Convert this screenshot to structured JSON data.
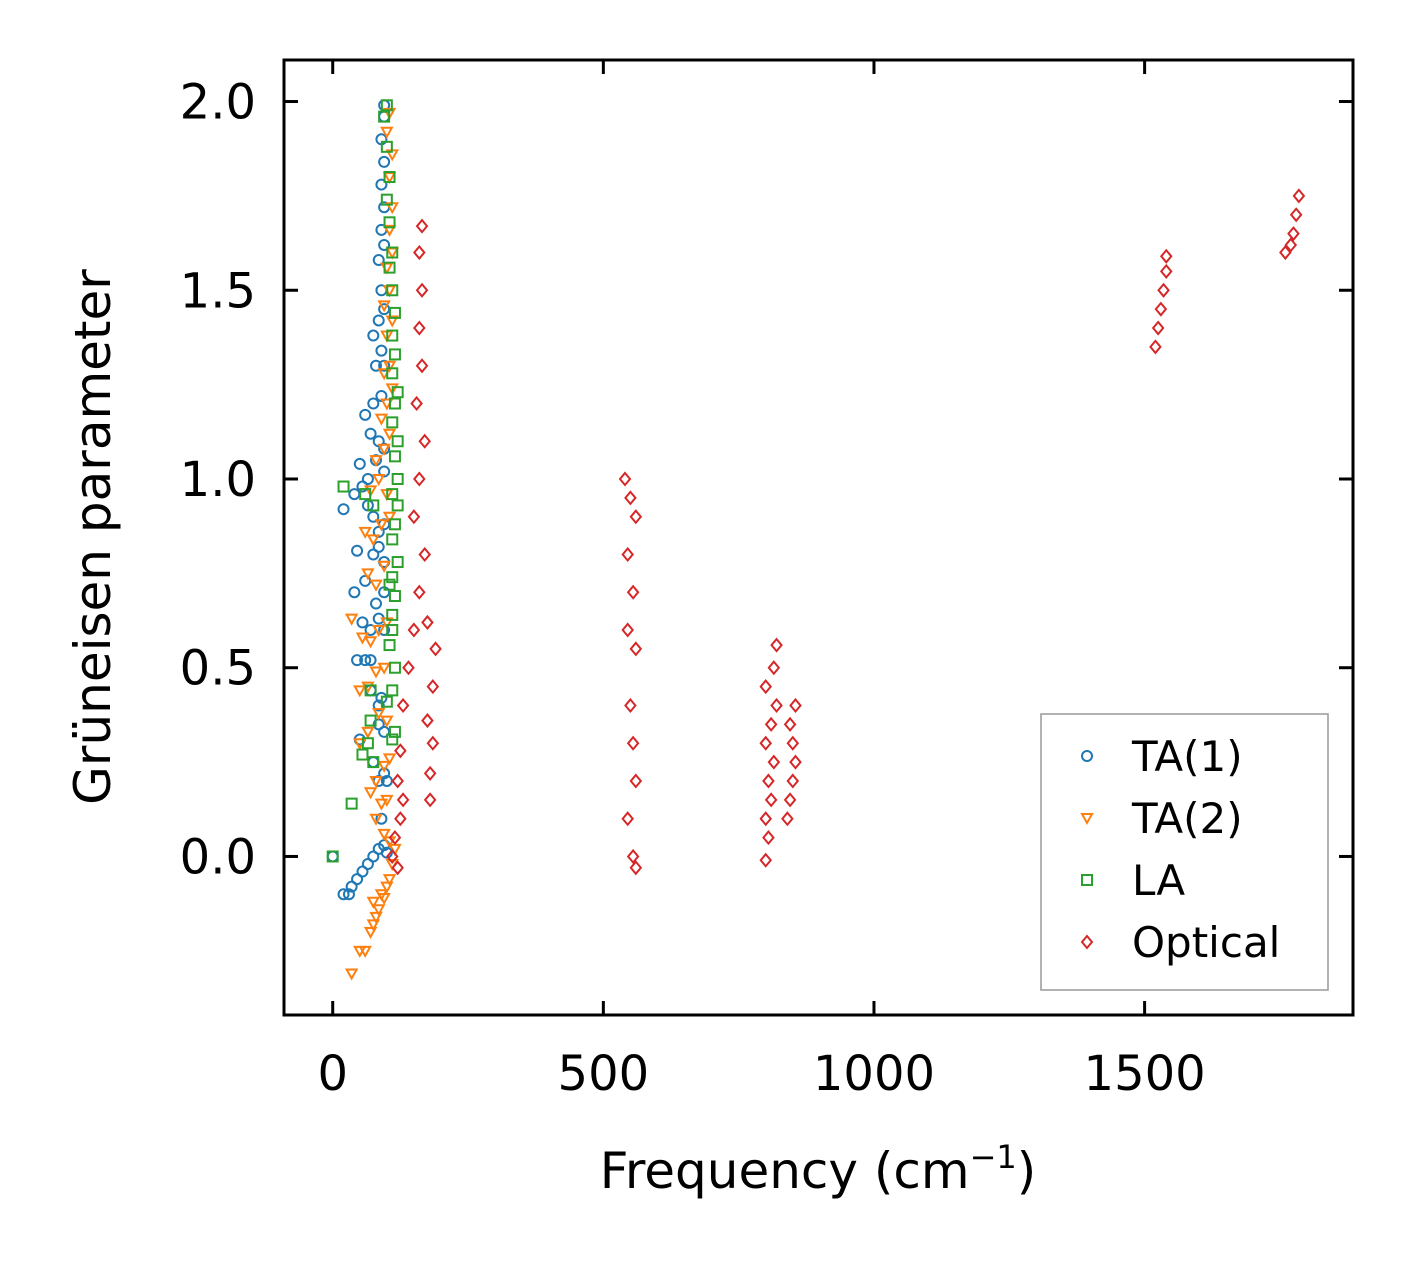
{
  "chart_data": {
    "type": "scatter",
    "title": "",
    "xlabel": "Frequency (cm",
    "xlabel_sup": "−1",
    "xlabel_close": ")",
    "ylabel": "Grüneisen parameter",
    "xlim": [
      -90,
      1885
    ],
    "ylim": [
      -0.42,
      2.11
    ],
    "x_ticks": [
      0,
      500,
      1000,
      1500
    ],
    "x_tick_labels": [
      "0",
      "500",
      "1000",
      "1500"
    ],
    "y_ticks": [
      0.0,
      0.5,
      1.0,
      1.5,
      2.0
    ],
    "y_tick_labels": [
      "0.0",
      "0.5",
      "1.0",
      "1.5",
      "2.0"
    ],
    "grid": false,
    "legend_position": "bottom-right",
    "series": [
      {
        "name": "TA(1)",
        "color": "#1f77b4",
        "marker": "circle",
        "points": [
          [
            0,
            0.0
          ],
          [
            20,
            -0.1
          ],
          [
            30,
            -0.1
          ],
          [
            35,
            -0.08
          ],
          [
            45,
            -0.06
          ],
          [
            55,
            -0.04
          ],
          [
            65,
            -0.02
          ],
          [
            75,
            0.0
          ],
          [
            85,
            0.02
          ],
          [
            95,
            0.03
          ],
          [
            100,
            0.01
          ],
          [
            90,
            0.1
          ],
          [
            85,
            0.2
          ],
          [
            95,
            0.22
          ],
          [
            100,
            0.2
          ],
          [
            75,
            0.25
          ],
          [
            85,
            0.35
          ],
          [
            95,
            0.33
          ],
          [
            70,
            0.44
          ],
          [
            85,
            0.4
          ],
          [
            90,
            0.42
          ],
          [
            50,
            0.31
          ],
          [
            45,
            0.52
          ],
          [
            60,
            0.52
          ],
          [
            70,
            0.52
          ],
          [
            55,
            0.62
          ],
          [
            70,
            0.6
          ],
          [
            85,
            0.63
          ],
          [
            95,
            0.6
          ],
          [
            40,
            0.7
          ],
          [
            60,
            0.73
          ],
          [
            80,
            0.67
          ],
          [
            95,
            0.7
          ],
          [
            45,
            0.81
          ],
          [
            75,
            0.8
          ],
          [
            85,
            0.82
          ],
          [
            95,
            0.78
          ],
          [
            20,
            0.92
          ],
          [
            40,
            0.96
          ],
          [
            55,
            0.98
          ],
          [
            65,
            0.93
          ],
          [
            75,
            0.9
          ],
          [
            85,
            0.86
          ],
          [
            95,
            0.88
          ],
          [
            50,
            1.04
          ],
          [
            65,
            1.0
          ],
          [
            80,
            1.05
          ],
          [
            95,
            1.02
          ],
          [
            70,
            1.12
          ],
          [
            85,
            1.1
          ],
          [
            95,
            1.08
          ],
          [
            60,
            1.17
          ],
          [
            75,
            1.2
          ],
          [
            90,
            1.22
          ],
          [
            80,
            1.3
          ],
          [
            90,
            1.34
          ],
          [
            95,
            1.3
          ],
          [
            75,
            1.38
          ],
          [
            85,
            1.42
          ],
          [
            95,
            1.45
          ],
          [
            90,
            1.5
          ],
          [
            85,
            1.58
          ],
          [
            95,
            1.62
          ],
          [
            90,
            1.66
          ],
          [
            95,
            1.72
          ],
          [
            90,
            1.78
          ],
          [
            95,
            1.84
          ],
          [
            90,
            1.9
          ],
          [
            95,
            1.96
          ],
          [
            95,
            1.99
          ]
        ]
      },
      {
        "name": "TA(2)",
        "color": "#ff7f0e",
        "marker": "triangle-down",
        "points": [
          [
            35,
            -0.31
          ],
          [
            50,
            -0.25
          ],
          [
            60,
            -0.25
          ],
          [
            70,
            -0.2
          ],
          [
            75,
            -0.18
          ],
          [
            80,
            -0.16
          ],
          [
            85,
            -0.14
          ],
          [
            95,
            -0.11
          ],
          [
            100,
            -0.08
          ],
          [
            105,
            -0.06
          ],
          [
            75,
            -0.12
          ],
          [
            90,
            -0.1
          ],
          [
            110,
            -0.02
          ],
          [
            115,
            0.02
          ],
          [
            105,
            0.04
          ],
          [
            95,
            0.06
          ],
          [
            80,
            0.1
          ],
          [
            90,
            0.14
          ],
          [
            100,
            0.15
          ],
          [
            70,
            0.17
          ],
          [
            80,
            0.2
          ],
          [
            95,
            0.24
          ],
          [
            105,
            0.26
          ],
          [
            50,
            0.3
          ],
          [
            65,
            0.33
          ],
          [
            85,
            0.38
          ],
          [
            100,
            0.36
          ],
          [
            50,
            0.44
          ],
          [
            65,
            0.45
          ],
          [
            80,
            0.49
          ],
          [
            95,
            0.5
          ],
          [
            35,
            0.63
          ],
          [
            55,
            0.58
          ],
          [
            70,
            0.57
          ],
          [
            85,
            0.6
          ],
          [
            100,
            0.62
          ],
          [
            65,
            0.75
          ],
          [
            80,
            0.72
          ],
          [
            95,
            0.77
          ],
          [
            60,
            0.86
          ],
          [
            75,
            0.84
          ],
          [
            90,
            0.88
          ],
          [
            105,
            0.9
          ],
          [
            70,
            0.97
          ],
          [
            85,
            1.0
          ],
          [
            100,
            0.96
          ],
          [
            80,
            1.05
          ],
          [
            95,
            1.08
          ],
          [
            105,
            1.12
          ],
          [
            90,
            1.16
          ],
          [
            100,
            1.2
          ],
          [
            110,
            1.24
          ],
          [
            95,
            1.28
          ],
          [
            105,
            1.3
          ],
          [
            100,
            1.38
          ],
          [
            110,
            1.42
          ],
          [
            95,
            1.46
          ],
          [
            105,
            1.5
          ],
          [
            100,
            1.56
          ],
          [
            110,
            1.6
          ],
          [
            105,
            1.66
          ],
          [
            110,
            1.72
          ],
          [
            105,
            1.8
          ],
          [
            110,
            1.86
          ],
          [
            100,
            1.92
          ],
          [
            105,
            1.97
          ]
        ]
      },
      {
        "name": "LA",
        "color": "#2ca02c",
        "marker": "square",
        "points": [
          [
            0,
            0.0
          ],
          [
            35,
            0.14
          ],
          [
            65,
            0.3
          ],
          [
            70,
            0.36
          ],
          [
            55,
            0.27
          ],
          [
            75,
            0.25
          ],
          [
            110,
            0.31
          ],
          [
            115,
            0.33
          ],
          [
            100,
            0.41
          ],
          [
            110,
            0.44
          ],
          [
            70,
            0.44
          ],
          [
            115,
            0.5
          ],
          [
            105,
            0.56
          ],
          [
            110,
            0.6
          ],
          [
            110,
            0.64
          ],
          [
            115,
            0.69
          ],
          [
            105,
            0.72
          ],
          [
            110,
            0.74
          ],
          [
            120,
            0.78
          ],
          [
            110,
            0.84
          ],
          [
            115,
            0.88
          ],
          [
            120,
            0.93
          ],
          [
            110,
            0.96
          ],
          [
            20,
            0.98
          ],
          [
            60,
            0.96
          ],
          [
            75,
            0.93
          ],
          [
            120,
            1.0
          ],
          [
            115,
            1.06
          ],
          [
            120,
            1.1
          ],
          [
            110,
            1.15
          ],
          [
            115,
            1.2
          ],
          [
            120,
            1.23
          ],
          [
            110,
            1.28
          ],
          [
            115,
            1.33
          ],
          [
            110,
            1.38
          ],
          [
            115,
            1.44
          ],
          [
            110,
            1.5
          ],
          [
            105,
            1.56
          ],
          [
            110,
            1.6
          ],
          [
            105,
            1.68
          ],
          [
            100,
            1.74
          ],
          [
            105,
            1.8
          ],
          [
            100,
            1.88
          ],
          [
            95,
            1.96
          ],
          [
            100,
            1.99
          ]
        ]
      },
      {
        "name": "Optical",
        "color": "#d62728",
        "marker": "diamond",
        "points": [
          [
            110,
            0.0
          ],
          [
            115,
            0.05
          ],
          [
            120,
            -0.03
          ],
          [
            125,
            0.1
          ],
          [
            130,
            0.15
          ],
          [
            120,
            0.2
          ],
          [
            125,
            0.28
          ],
          [
            180,
            0.15
          ],
          [
            180,
            0.22
          ],
          [
            185,
            0.3
          ],
          [
            175,
            0.36
          ],
          [
            185,
            0.45
          ],
          [
            190,
            0.55
          ],
          [
            175,
            0.62
          ],
          [
            130,
            0.4
          ],
          [
            140,
            0.5
          ],
          [
            150,
            0.6
          ],
          [
            160,
            0.7
          ],
          [
            170,
            0.8
          ],
          [
            150,
            0.9
          ],
          [
            160,
            1.0
          ],
          [
            170,
            1.1
          ],
          [
            155,
            1.2
          ],
          [
            165,
            1.3
          ],
          [
            160,
            1.4
          ],
          [
            165,
            1.5
          ],
          [
            160,
            1.6
          ],
          [
            165,
            1.67
          ],
          [
            540,
            1.0
          ],
          [
            550,
            0.95
          ],
          [
            560,
            0.9
          ],
          [
            545,
            0.8
          ],
          [
            555,
            0.7
          ],
          [
            545,
            0.6
          ],
          [
            560,
            0.55
          ],
          [
            550,
            0.4
          ],
          [
            555,
            0.3
          ],
          [
            560,
            0.2
          ],
          [
            545,
            0.1
          ],
          [
            555,
            0.0
          ],
          [
            560,
            -0.03
          ],
          [
            800,
            -0.01
          ],
          [
            805,
            0.05
          ],
          [
            800,
            0.1
          ],
          [
            810,
            0.15
          ],
          [
            805,
            0.2
          ],
          [
            815,
            0.25
          ],
          [
            800,
            0.3
          ],
          [
            810,
            0.35
          ],
          [
            820,
            0.4
          ],
          [
            800,
            0.45
          ],
          [
            815,
            0.5
          ],
          [
            820,
            0.56
          ],
          [
            840,
            0.1
          ],
          [
            845,
            0.15
          ],
          [
            850,
            0.2
          ],
          [
            855,
            0.25
          ],
          [
            850,
            0.3
          ],
          [
            845,
            0.35
          ],
          [
            855,
            0.4
          ],
          [
            1520,
            1.35
          ],
          [
            1525,
            1.4
          ],
          [
            1530,
            1.45
          ],
          [
            1535,
            1.5
          ],
          [
            1540,
            1.55
          ],
          [
            1540,
            1.59
          ],
          [
            1760,
            1.6
          ],
          [
            1770,
            1.62
          ],
          [
            1775,
            1.65
          ],
          [
            1780,
            1.7
          ],
          [
            1785,
            1.75
          ]
        ]
      }
    ]
  }
}
